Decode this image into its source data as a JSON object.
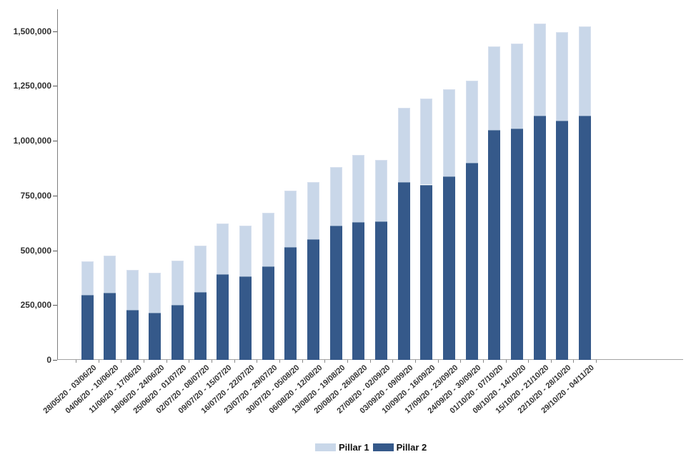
{
  "chart_data": {
    "type": "bar",
    "stacked": true,
    "title": "",
    "xlabel": "",
    "ylabel": "",
    "grid": false,
    "legend_position": "bottom",
    "ylim": [
      0,
      1600000
    ],
    "yticks": [
      0,
      250000,
      500000,
      750000,
      1000000,
      1250000,
      1500000
    ],
    "ytick_labels": [
      "0",
      "250,000",
      "500,000",
      "750,000",
      "1,000,000",
      "1,250,000",
      "1,500,000"
    ],
    "categories": [
      "28/05/20 - 03/06/20",
      "04/06/20 - 10/06/20",
      "11/06/20 - 17/06/20",
      "18/06/20 - 24/06/20",
      "25/06/20 - 01/07/20",
      "02/07/20 - 08/07/20",
      "09/07/20 - 15/07/20",
      "16/07/20 - 22/07/20",
      "23/07/20 - 29/07/20",
      "30/07/20 - 05/08/20",
      "06/08/20 - 12/08/20",
      "13/08/20 - 19/08/20",
      "20/08/20 - 26/08/20",
      "27/08/20 - 02/09/20",
      "03/09/20 - 09/09/20",
      "10/09/20 - 16/09/20",
      "17/09/20 - 23/09/20",
      "24/09/20 - 30/09/20",
      "01/10/20 - 07/10/20",
      "08/10/20 - 14/10/20",
      "15/10/20 - 21/10/20",
      "22/10/20 - 28/10/20",
      "29/10/20 - 04/11/20"
    ],
    "series": [
      {
        "name": "Pillar 2",
        "stack_order": "bottom",
        "color": "#35598a",
        "values": [
          295000,
          307000,
          229000,
          216000,
          251000,
          308000,
          391000,
          381000,
          428000,
          516000,
          552000,
          612000,
          628000,
          631000,
          811000,
          800000,
          839000,
          898000,
          1050000,
          1056000,
          1113000,
          1092000,
          1115000
        ]
      },
      {
        "name": "Pillar 1",
        "stack_order": "top",
        "color": "#c9d7e9",
        "values": [
          155000,
          168000,
          181000,
          180000,
          203000,
          214000,
          232000,
          233000,
          244000,
          256000,
          259000,
          268000,
          306000,
          283000,
          338000,
          392000,
          396000,
          375000,
          382000,
          388000,
          422000,
          403000,
          407000
        ]
      }
    ]
  },
  "legend": {
    "items": [
      {
        "label": "Pillar 1",
        "color": "#c9d7e9"
      },
      {
        "label": "Pillar 2",
        "color": "#35598a"
      }
    ]
  },
  "colors": {
    "axis_line": "#7f7f7f",
    "baseline": "#a3a3a3",
    "tick": "#555555",
    "label_text": "#2f2f2f"
  }
}
